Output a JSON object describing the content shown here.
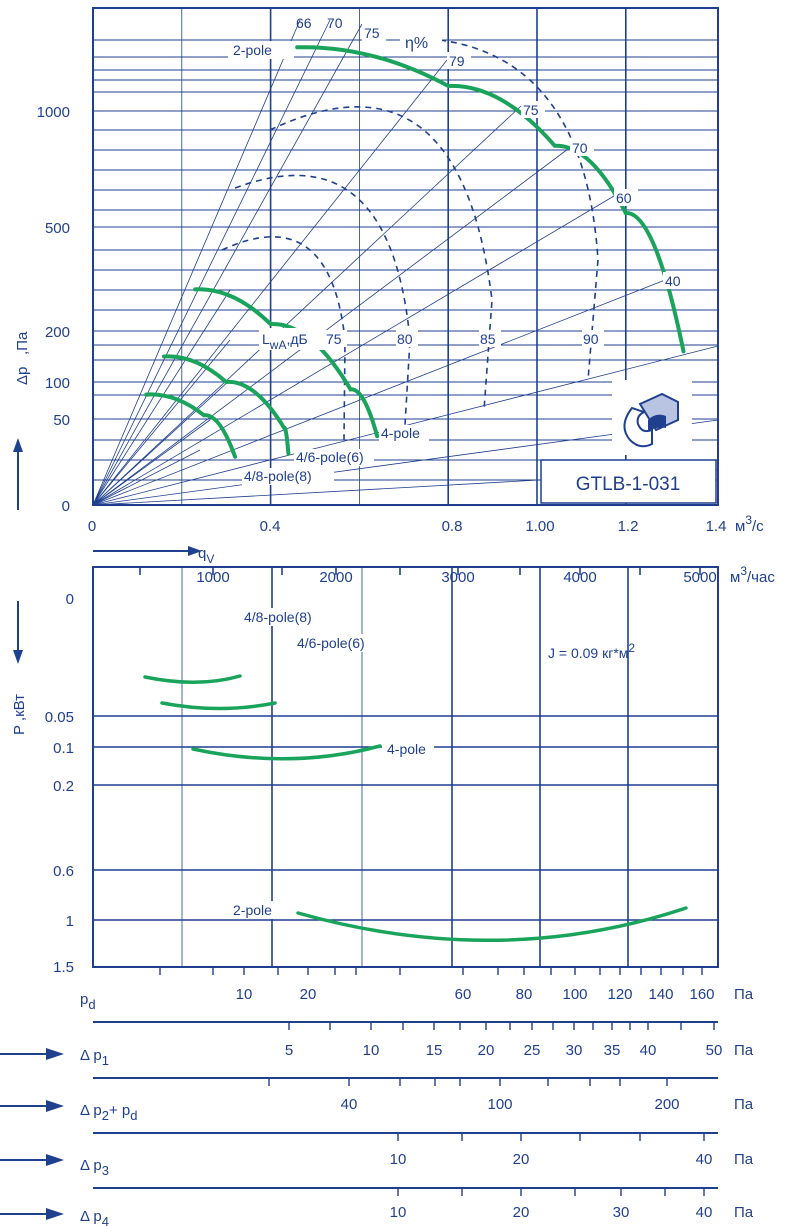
{
  "colors": {
    "frame": "#1f3f8f",
    "grid": "#1f3f8f",
    "curve": "#1aa35a",
    "text": "#1f3f8f"
  },
  "chart_data": [
    {
      "type": "line",
      "xlabel": "q",
      "xlabel_sub": "V",
      "x_unit": "м",
      "x_unit_sup": "3",
      "x_unit_suffix": "/с",
      "x_ticks": [
        "0",
        "0.4",
        "0.8",
        "1.00",
        "1.2",
        "1.4"
      ],
      "ylabel": "Δp",
      "y_unit": ",Па",
      "y_ticks": [
        "0",
        "50",
        "100",
        "200",
        "500",
        "1000"
      ],
      "series": [
        {
          "name": "2-pole",
          "points": [
            [
              0.46,
              1280
            ],
            [
              0.8,
              1110
            ],
            [
              1.04,
              850
            ],
            [
              1.2,
              560
            ],
            [
              1.33,
              160
            ]
          ]
        },
        {
          "name": "4-pole",
          "points": [
            [
              0.23,
              320
            ],
            [
              0.4,
              220
            ],
            [
              0.58,
              90
            ],
            [
              0.64,
              40
            ]
          ]
        },
        {
          "name": "4/6-pole(6)",
          "points": [
            [
              0.16,
              150
            ],
            [
              0.3,
              100
            ],
            [
              0.43,
              45
            ],
            [
              0.44,
              30
            ]
          ]
        },
        {
          "name": "4/8-pole(8)",
          "points": [
            [
              0.12,
              83
            ],
            [
              0.25,
              55
            ],
            [
              0.32,
              28
            ]
          ]
        }
      ],
      "efficiency_label": "η%",
      "efficiency_lines": [
        "79",
        "75",
        "70",
        "60",
        "40"
      ],
      "sound_label": "L",
      "sound_label_sub": "wA",
      "sound_unit": ",дБ",
      "sound_levels": [
        "66",
        "70",
        "75",
        "75",
        "80",
        "85",
        "90"
      ],
      "model": "GTLB-1-031"
    },
    {
      "type": "line",
      "x_top_ticks": [
        "1000",
        "2000",
        "3000",
        "4000",
        "5000"
      ],
      "x_top_unit": "м",
      "x_top_unit_sup": "3",
      "x_top_unit_suffix": "/час",
      "ylabel": "P ,кВт",
      "y_ticks": [
        "0",
        "0.05",
        "0.1",
        "0.2",
        "0.6",
        "1",
        "1.5"
      ],
      "inertia": "J = 0.09 кг*м",
      "inertia_sup": "2",
      "series": [
        {
          "name": "4/8-pole(8)"
        },
        {
          "name": "4/6-pole(6)"
        },
        {
          "name": "4-pole"
        },
        {
          "name": "2-pole"
        }
      ]
    }
  ],
  "scales": [
    {
      "label": "p",
      "sub": "d",
      "unit": "Па",
      "ticks": [
        "10",
        "20",
        "60",
        "80",
        "100",
        "120",
        "140",
        "160"
      ]
    },
    {
      "label": "Δ p",
      "sub": "1",
      "unit": "Па",
      "ticks": [
        "5",
        "10",
        "15",
        "20",
        "25",
        "30",
        "35",
        "40",
        "50"
      ]
    },
    {
      "label": "Δ p",
      "sub": "2",
      "label_tail": "+ p",
      "sub2": "d",
      "unit": "Па",
      "ticks": [
        "40",
        "100",
        "200"
      ]
    },
    {
      "label": "Δ p",
      "sub": "3",
      "unit": "Па",
      "ticks": [
        "10",
        "20",
        "40"
      ]
    },
    {
      "label": "Δ p",
      "sub": "4",
      "unit": "Па",
      "ticks": [
        "10",
        "20",
        "30",
        "40"
      ]
    }
  ]
}
